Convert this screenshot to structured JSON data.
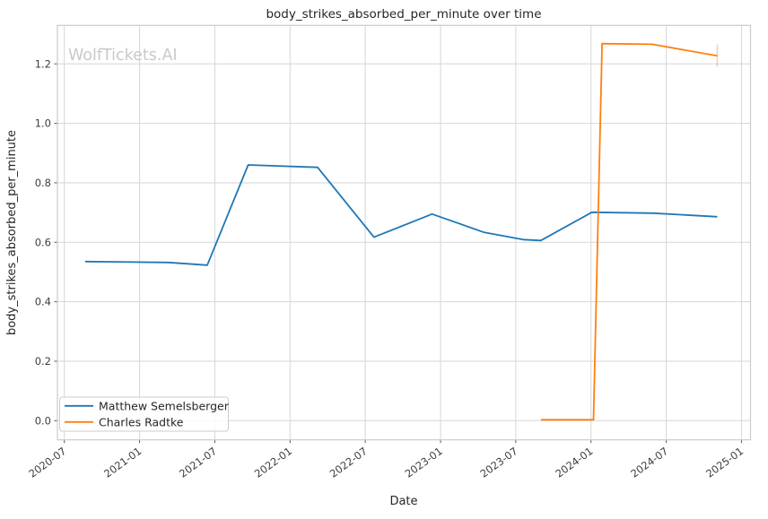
{
  "watermark": "WolfTickets.AI",
  "chart_data": {
    "type": "line",
    "title": "body_strikes_absorbed_per_minute over time",
    "xlabel": "Date",
    "ylabel": "body_strikes_absorbed_per_minute",
    "x_ticks": [
      "2020-07",
      "2021-01",
      "2021-07",
      "2022-01",
      "2022-07",
      "2023-01",
      "2023-07",
      "2024-01",
      "2024-07",
      "2025-01"
    ],
    "y_ticks": [
      "0.0",
      "0.2",
      "0.4",
      "0.6",
      "0.8",
      "1.0",
      "1.2"
    ],
    "ylim": [
      -0.065,
      1.33
    ],
    "grid": true,
    "legend_position": "lower left",
    "colors": {
      "grid": "#d6d6d6",
      "spine": "#cbcbcb",
      "series1": "#1f77b4",
      "series2": "#ff7f0e",
      "watermark": "#c9c9c9"
    },
    "series": [
      {
        "name": "Matthew Semelsberger",
        "color": "#1f77b4",
        "points": [
          [
            "2020-08-21",
            0.535
          ],
          [
            "2021-03-10",
            0.532
          ],
          [
            "2021-06-13",
            0.523
          ],
          [
            "2021-09-21",
            0.86
          ],
          [
            "2022-03-07",
            0.852
          ],
          [
            "2022-07-22",
            0.617
          ],
          [
            "2022-12-11",
            0.695
          ],
          [
            "2023-04-16",
            0.633
          ],
          [
            "2023-07-19",
            0.609
          ],
          [
            "2023-09-01",
            0.606
          ],
          [
            "2024-01-03",
            0.701
          ],
          [
            "2024-05-30",
            0.698
          ],
          [
            "2024-11-03",
            0.686
          ]
        ]
      },
      {
        "name": "Charles Radtke",
        "color": "#ff7f0e",
        "points": [
          [
            "2023-09-01",
            0.003
          ],
          [
            "2024-01-07",
            0.003
          ],
          [
            "2024-01-28",
            1.268
          ],
          [
            "2024-05-28",
            1.266
          ],
          [
            "2024-11-03",
            1.227
          ]
        ],
        "error_bar": {
          "at": "2024-11-03",
          "low": 1.19,
          "high": 1.265
        }
      }
    ]
  }
}
